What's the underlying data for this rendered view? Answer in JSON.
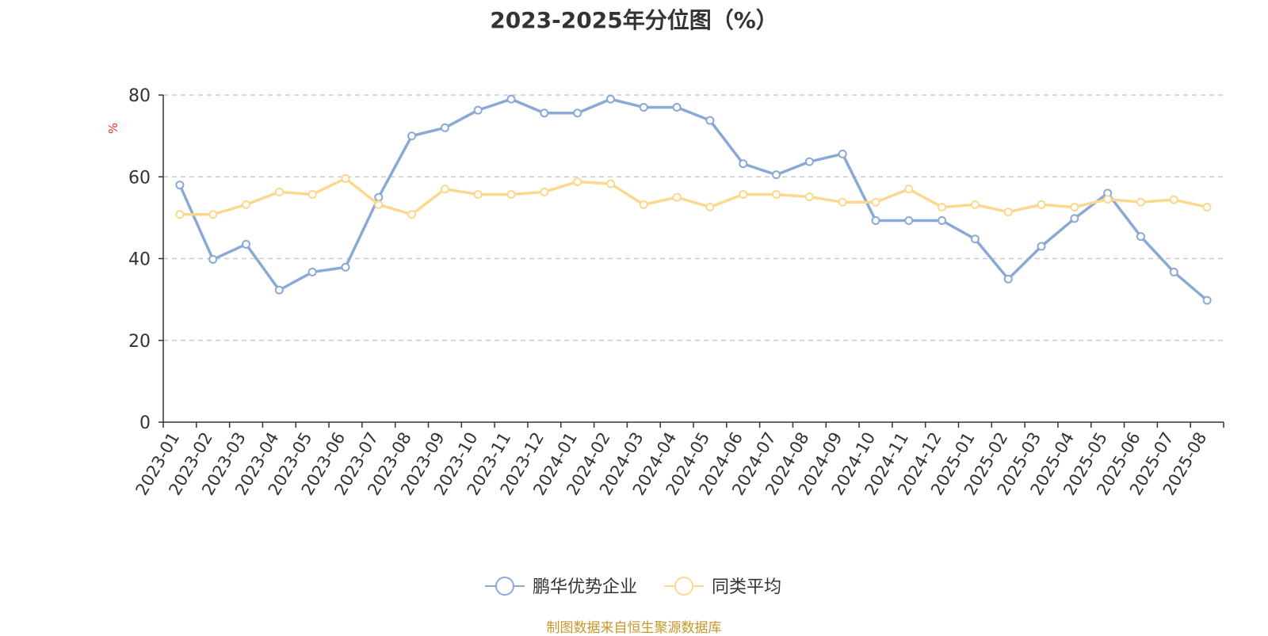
{
  "chart_data": {
    "type": "line",
    "title": "2023-2025年分位图（%）",
    "ylabel": "%",
    "xlabel": "",
    "ylim": [
      0,
      80
    ],
    "yticks": [
      0,
      20,
      40,
      60,
      80
    ],
    "grid": true,
    "legend_position": "bottom",
    "categories": [
      "2023-01",
      "2023-02",
      "2023-03",
      "2023-04",
      "2023-05",
      "2023-06",
      "2023-07",
      "2023-08",
      "2023-09",
      "2023-10",
      "2023-11",
      "2023-12",
      "2024-01",
      "2024-02",
      "2024-03",
      "2024-04",
      "2024-05",
      "2024-06",
      "2024-07",
      "2024-08",
      "2024-09",
      "2024-10",
      "2024-11",
      "2024-12",
      "2025-01",
      "2025-02",
      "2025-03",
      "2025-04",
      "2025-05",
      "2025-06",
      "2025-07",
      "2025-08"
    ],
    "series": [
      {
        "name": "鹏华优势企业",
        "color": "#8aa9d6",
        "values": [
          58,
          39.8,
          43.5,
          32.3,
          36.7,
          37.9,
          55,
          70,
          72,
          76.3,
          79,
          75.6,
          75.6,
          79,
          77,
          77,
          73.8,
          63.2,
          60.5,
          63.7,
          65.6,
          49.3,
          49.3,
          49.3,
          44.8,
          35,
          43,
          49.8,
          56,
          45.4,
          36.7,
          29.8
        ]
      },
      {
        "name": "同类平均",
        "color": "#fbd88e",
        "values": [
          50.8,
          50.8,
          53.2,
          56.3,
          55.7,
          59.6,
          53.2,
          50.8,
          57,
          55.7,
          55.7,
          56.3,
          58.8,
          58.3,
          53.2,
          55,
          52.6,
          55.7,
          55.7,
          55.1,
          53.8,
          53.8,
          57,
          52.6,
          53.2,
          51.4,
          53.2,
          52.6,
          54.5,
          53.8,
          54.4,
          52.6
        ]
      }
    ]
  },
  "source": "制图数据来自恒生聚源数据库"
}
